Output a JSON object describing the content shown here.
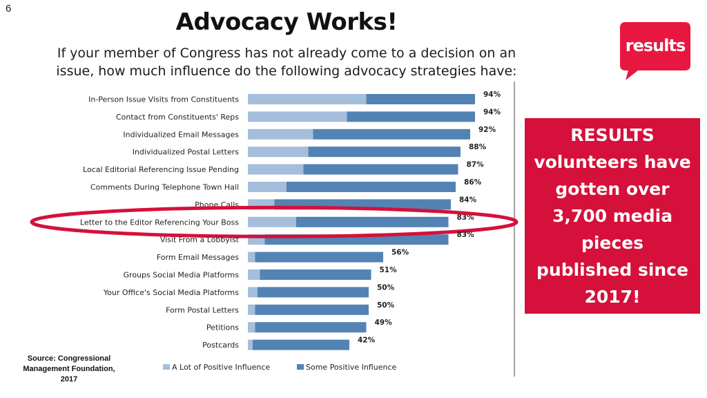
{
  "slide": {
    "number": "6"
  },
  "title": "Advocacy Works!",
  "subtitle": "If your member of Congress has not already come to a decision on an issue, how much influence do the following advocacy strategies have:",
  "logo": {
    "text": "results",
    "color": "#e8173f"
  },
  "callout": {
    "text": "RESULTS volunteers have gotten over 3,700 media pieces published since 2017!",
    "background": "#d5103a"
  },
  "source": "Source: Congressional Management Foundation, 2017",
  "colors": {
    "a_lot": "#a4bedb",
    "some": "#5283b4",
    "highlight": "#d5103a"
  },
  "chart_data": {
    "type": "bar",
    "orientation": "horizontal",
    "stacked": true,
    "categories": [
      "In-Person Issue Visits from Constituents",
      "Contact from Constituents' Reps",
      "Individualized Email Messages",
      "Individualized Postal Letters",
      "Local Editorial Referencing Issue Pending",
      "Comments During Telephone Town Hall",
      "Phone Calls",
      "Letter to the Editor Referencing Your Boss",
      "Visit From a Lobbyist",
      "Form Email Messages",
      "Groups Social Media Platforms",
      "Your Office's Social Media Platforms",
      "Form Postal Letters",
      "Petitions",
      "Postcards"
    ],
    "series": [
      {
        "name": "A Lot of Positive Influence",
        "values": [
          49,
          41,
          27,
          25,
          23,
          16,
          11,
          20,
          7,
          3,
          5,
          4,
          3,
          3,
          2
        ]
      },
      {
        "name": "Some Positive Influence",
        "values": [
          45,
          53,
          65,
          63,
          64,
          70,
          73,
          63,
          76,
          53,
          46,
          46,
          47,
          46,
          40
        ]
      }
    ],
    "totals": [
      "94%",
      "94%",
      "92%",
      "88%",
      "87%",
      "86%",
      "84%",
      "83%",
      "83%",
      "56%",
      "51%",
      "50%",
      "50%",
      "49%",
      "42%"
    ],
    "highlighted": "Letter to the Editor Referencing Your Boss",
    "legend_position": "bottom",
    "xlim": [
      0,
      100
    ],
    "grid": false
  }
}
